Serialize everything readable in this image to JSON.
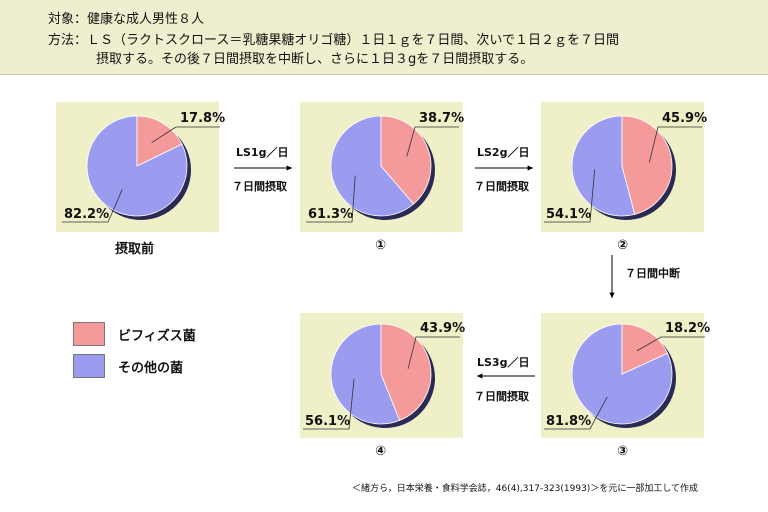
{
  "header": {
    "line1": "対象：健康な成人男性８人",
    "line2": "方法：ＬＳ（ラクトスクロース＝乳糖果糖オリゴ糖）１日１ｇを７日間、次いで１日２ｇを７日間",
    "line3": "摂取する。その後７日間摂取を中断し、さらに１日３gを７日間摂取する。"
  },
  "legend": [
    {
      "label": "ビフィズス菌",
      "color": "#f59a9a"
    },
    {
      "label": "その他の菌",
      "color": "#9b9bf0"
    }
  ],
  "arrows": [
    {
      "line1": "LS1g／日",
      "line2": "７日間摂取"
    },
    {
      "line1": "LS2g／日",
      "line2": "７日間摂取"
    },
    {
      "line1": "７日間中断"
    },
    {
      "line1": "LS3g／日",
      "line2": "７日間摂取"
    }
  ],
  "source": "＜緒方ら，日本栄養・食料学会誌，46(4),317-323(1993)＞を元に一部加工して作成",
  "chart_data": {
    "type": "pie",
    "series_names": [
      "ビフィズス菌",
      "その他の菌"
    ],
    "colors": {
      "bifido": "#f59a9a",
      "other": "#9b9bf0"
    },
    "charts": [
      {
        "label": "摂取前",
        "bifido": 17.8,
        "other": 82.2,
        "bifido_text": "17.8%",
        "other_text": "82.2%"
      },
      {
        "label": "①",
        "bifido": 38.7,
        "other": 61.3,
        "bifido_text": "38.7%",
        "other_text": "61.3%"
      },
      {
        "label": "②",
        "bifido": 45.9,
        "other": 54.1,
        "bifido_text": "45.9%",
        "other_text": "54.1%"
      },
      {
        "label": "③",
        "bifido": 18.2,
        "other": 81.8,
        "bifido_text": "18.2%",
        "other_text": "81.8%"
      },
      {
        "label": "④",
        "bifido": 43.9,
        "other": 56.1,
        "bifido_text": "43.9%",
        "other_text": "56.1%"
      }
    ]
  }
}
